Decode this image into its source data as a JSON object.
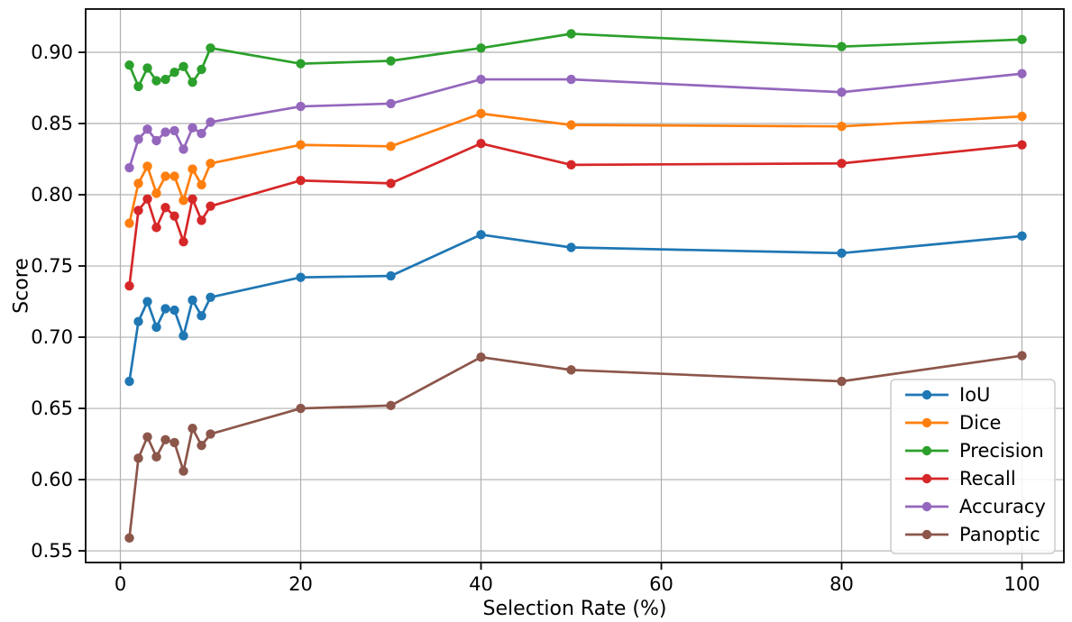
{
  "figure": {
    "background": "#ffffff",
    "grid_color": "#b0b0b0",
    "spine_color": "#000000",
    "legend_border_color": "#cccccc"
  },
  "chart_data": {
    "type": "line",
    "title": "",
    "xlabel": "Selection Rate (%)",
    "ylabel": "Score",
    "grid": true,
    "legend_position": "lower right",
    "xlim": [
      -3.85,
      104.65
    ],
    "ylim": [
      0.5418,
      0.9304
    ],
    "x_ticks": [
      0,
      20,
      40,
      60,
      80,
      100
    ],
    "x_tick_labels": [
      "0",
      "20",
      "40",
      "60",
      "80",
      "100"
    ],
    "y_ticks": [
      0.55,
      0.6,
      0.65,
      0.7,
      0.75,
      0.8,
      0.85,
      0.9
    ],
    "y_tick_labels": [
      "0.55",
      "0.60",
      "0.65",
      "0.70",
      "0.75",
      "0.80",
      "0.85",
      "0.90"
    ],
    "x": [
      1,
      2,
      3,
      4,
      5,
      6,
      7,
      8,
      9,
      10,
      20,
      30,
      40,
      50,
      80,
      100
    ],
    "series": [
      {
        "name": "IoU",
        "color": "#1f77b4",
        "values": [
          0.669,
          0.711,
          0.725,
          0.707,
          0.72,
          0.719,
          0.701,
          0.726,
          0.715,
          0.728,
          0.742,
          0.743,
          0.772,
          0.763,
          0.759,
          0.771
        ]
      },
      {
        "name": "Dice",
        "color": "#ff7f0e",
        "values": [
          0.78,
          0.808,
          0.82,
          0.801,
          0.813,
          0.813,
          0.796,
          0.818,
          0.807,
          0.822,
          0.835,
          0.834,
          0.857,
          0.849,
          0.848,
          0.855
        ]
      },
      {
        "name": "Precision",
        "color": "#2ca02c",
        "values": [
          0.891,
          0.876,
          0.889,
          0.88,
          0.881,
          0.886,
          0.89,
          0.879,
          0.888,
          0.903,
          0.892,
          0.894,
          0.903,
          0.913,
          0.904,
          0.909
        ]
      },
      {
        "name": "Recall",
        "color": "#d62728",
        "values": [
          0.736,
          0.789,
          0.797,
          0.777,
          0.791,
          0.785,
          0.767,
          0.797,
          0.782,
          0.792,
          0.81,
          0.808,
          0.836,
          0.821,
          0.822,
          0.835
        ]
      },
      {
        "name": "Accuracy",
        "color": "#9467bd",
        "values": [
          0.819,
          0.839,
          0.846,
          0.838,
          0.844,
          0.845,
          0.832,
          0.847,
          0.843,
          0.851,
          0.862,
          0.864,
          0.881,
          0.881,
          0.872,
          0.885
        ]
      },
      {
        "name": "Panoptic",
        "color": "#8c564b",
        "values": [
          0.559,
          0.615,
          0.63,
          0.616,
          0.628,
          0.626,
          0.606,
          0.636,
          0.624,
          0.632,
          0.65,
          0.652,
          0.686,
          0.677,
          0.669,
          0.687
        ]
      }
    ]
  }
}
